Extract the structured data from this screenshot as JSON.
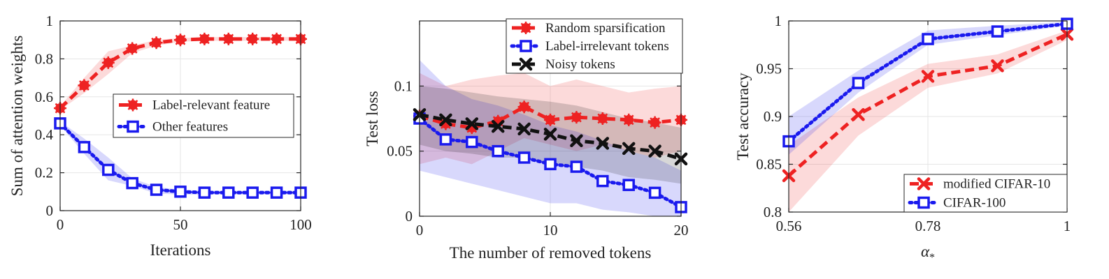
{
  "chart_data": [
    {
      "type": "line",
      "title": "",
      "xlabel": "Iterations",
      "ylabel": "Sum of attention weights",
      "xlim": [
        0,
        100
      ],
      "ylim": [
        0,
        1
      ],
      "xticks": [
        0,
        50,
        100
      ],
      "yticks": [
        0,
        0.2,
        0.4,
        0.6,
        0.8,
        1
      ],
      "xtick_labels": [
        "0",
        "50",
        "100"
      ],
      "ytick_labels": [
        "0",
        "0.2",
        "0.4",
        "0.6",
        "0.8",
        "1"
      ],
      "grid": true,
      "legend_position": "center-right",
      "x": [
        0,
        10,
        20,
        30,
        40,
        50,
        60,
        70,
        80,
        90,
        100
      ],
      "series": [
        {
          "name": "Label-relevant feature",
          "color": "#ee2222",
          "line": "dashed",
          "marker": "asterisk",
          "values": [
            0.54,
            0.66,
            0.78,
            0.855,
            0.885,
            0.9,
            0.905,
            0.905,
            0.905,
            0.905,
            0.905
          ],
          "band_low": [
            0.53,
            0.62,
            0.72,
            0.83,
            0.87,
            0.89,
            0.895,
            0.895,
            0.895,
            0.895,
            0.895
          ],
          "band_high": [
            0.55,
            0.7,
            0.84,
            0.87,
            0.9,
            0.91,
            0.915,
            0.915,
            0.915,
            0.915,
            0.915
          ]
        },
        {
          "name": "Other features",
          "color": "#1a1aee",
          "line": "dotted",
          "marker": "square",
          "values": [
            0.46,
            0.335,
            0.215,
            0.145,
            0.11,
            0.1,
            0.095,
            0.095,
            0.095,
            0.095,
            0.095
          ],
          "band_low": [
            0.45,
            0.3,
            0.16,
            0.13,
            0.09,
            0.085,
            0.085,
            0.085,
            0.085,
            0.085,
            0.085
          ],
          "band_high": [
            0.47,
            0.38,
            0.28,
            0.17,
            0.125,
            0.11,
            0.105,
            0.105,
            0.105,
            0.105,
            0.105
          ]
        }
      ]
    },
    {
      "type": "line",
      "title": "",
      "xlabel": "The number of removed tokens",
      "ylabel": "Test loss",
      "xlim": [
        0,
        20
      ],
      "ylim": [
        0,
        0.15
      ],
      "xticks": [
        0,
        10,
        20
      ],
      "yticks": [
        0,
        0.05,
        0.1
      ],
      "xtick_labels": [
        "0",
        "10",
        "20"
      ],
      "ytick_labels": [
        "0",
        "0.05",
        "0.1"
      ],
      "grid": true,
      "legend_position": "top-right",
      "x": [
        0,
        2,
        4,
        6,
        8,
        10,
        12,
        14,
        16,
        18,
        20
      ],
      "series": [
        {
          "name": "Random sparsification",
          "color": "#ee2222",
          "line": "dashed",
          "marker": "asterisk",
          "values": [
            0.077,
            0.071,
            0.068,
            0.073,
            0.084,
            0.074,
            0.076,
            0.075,
            0.074,
            0.072,
            0.074
          ],
          "band_low": [
            0.04,
            0.045,
            0.04,
            0.05,
            0.06,
            0.055,
            0.05,
            0.055,
            0.05,
            0.045,
            0.05
          ],
          "band_high": [
            0.11,
            0.1,
            0.105,
            0.108,
            0.11,
            0.1,
            0.105,
            0.1,
            0.095,
            0.098,
            0.1
          ]
        },
        {
          "name": "Label-irrelevant tokens",
          "color": "#1a1aee",
          "line": "dotted",
          "marker": "square",
          "values": [
            0.075,
            0.059,
            0.057,
            0.05,
            0.045,
            0.04,
            0.038,
            0.027,
            0.024,
            0.018,
            0.007
          ],
          "band_low": [
            0.035,
            0.03,
            0.025,
            0.02,
            0.015,
            0.01,
            0.01,
            0.005,
            0.003,
            0.0,
            0.0
          ],
          "band_high": [
            0.12,
            0.1,
            0.09,
            0.085,
            0.078,
            0.07,
            0.065,
            0.058,
            0.05,
            0.045,
            0.035
          ]
        },
        {
          "name": "Noisy tokens",
          "color": "#111111",
          "line": "dashed",
          "marker": "x",
          "values": [
            0.078,
            0.074,
            0.071,
            0.069,
            0.067,
            0.063,
            0.058,
            0.056,
            0.052,
            0.05,
            0.044
          ],
          "band_low": [
            0.055,
            0.05,
            0.048,
            0.045,
            0.045,
            0.04,
            0.038,
            0.035,
            0.03,
            0.028,
            0.025
          ],
          "band_high": [
            0.1,
            0.098,
            0.095,
            0.092,
            0.09,
            0.088,
            0.085,
            0.08,
            0.075,
            0.072,
            0.068
          ]
        }
      ]
    },
    {
      "type": "line",
      "title": "",
      "xlabel": "α*",
      "ylabel": "Test accuracy",
      "xlim": [
        0.56,
        1
      ],
      "ylim": [
        0.8,
        1
      ],
      "xticks": [
        0.56,
        0.78,
        1
      ],
      "yticks": [
        0.8,
        0.85,
        0.9,
        0.95,
        1
      ],
      "xtick_labels": [
        "0.56",
        "0.78",
        "1"
      ],
      "ytick_labels": [
        "0.8",
        "0.85",
        "0.9",
        "0.95",
        "1"
      ],
      "grid": true,
      "legend_position": "bottom-right",
      "x": [
        0.56,
        0.67,
        0.78,
        0.89,
        1.0
      ],
      "series": [
        {
          "name": "modified CIFAR-10",
          "color": "#ee2222",
          "line": "dashed",
          "marker": "x",
          "values": [
            0.838,
            0.902,
            0.942,
            0.953,
            0.986
          ],
          "band_low": [
            0.8,
            0.88,
            0.93,
            0.945,
            0.98
          ],
          "band_high": [
            0.87,
            0.92,
            0.955,
            0.965,
            0.99
          ]
        },
        {
          "name": "CIFAR-100",
          "color": "#1a1aee",
          "line": "dotted",
          "marker": "square",
          "values": [
            0.874,
            0.935,
            0.981,
            0.989,
            0.997
          ],
          "band_low": [
            0.86,
            0.925,
            0.975,
            0.985,
            0.995
          ],
          "band_high": [
            0.9,
            0.948,
            0.99,
            0.995,
            0.999
          ]
        }
      ]
    }
  ]
}
